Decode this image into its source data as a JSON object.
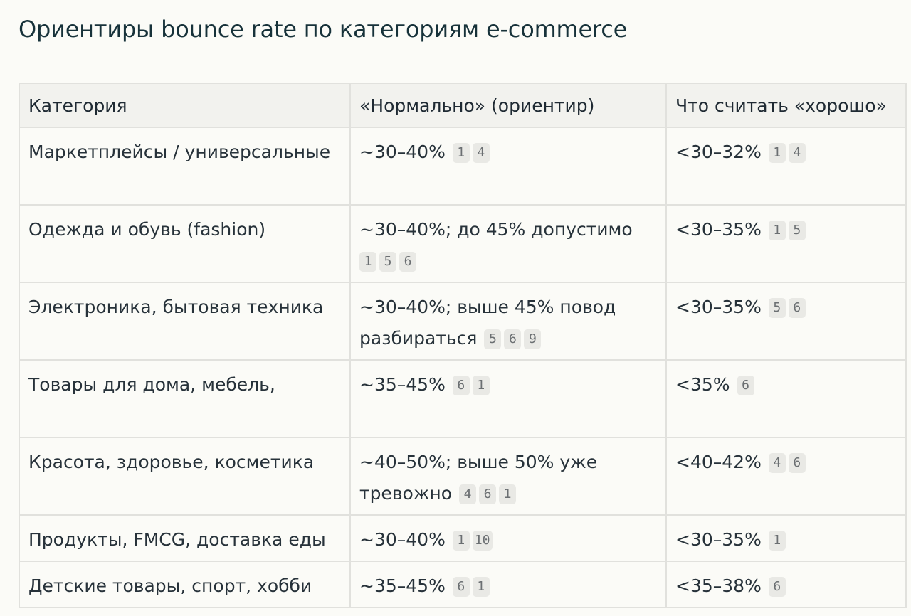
{
  "title": "Ориентиры bounce rate по категориям e-commerce",
  "headers": [
    "Категория",
    "«Нормально» (ориентир)",
    "Что считать «хорошо»"
  ],
  "rows": [
    {
      "category": "Маркетплейсы / универсальные",
      "normal": "~30–40%",
      "normal_refs": [
        "1",
        "4"
      ],
      "good": "<30–32%",
      "good_refs": [
        "1",
        "4"
      ]
    },
    {
      "category": "Одежда и обувь (fashion)",
      "normal": "~30–40%; до 45% допустимо",
      "normal_refs": [
        "1",
        "5",
        "6"
      ],
      "good": "<30–35%",
      "good_refs": [
        "1",
        "5"
      ]
    },
    {
      "category": "Электроника, бытовая техника",
      "normal": "~30–40%; выше 45% повод разбираться",
      "normal_refs": [
        "5",
        "6",
        "9"
      ],
      "good": "<30–35%",
      "good_refs": [
        "5",
        "6"
      ]
    },
    {
      "category": "Товары для дома, мебель,",
      "normal": "~35–45%",
      "normal_refs": [
        "6",
        "1"
      ],
      "good": "<35%",
      "good_refs": [
        "6"
      ]
    },
    {
      "category": "Красота, здоровье, косметика",
      "normal": "~40–50%; выше 50% уже тревожно",
      "normal_refs": [
        "4",
        "6",
        "1"
      ],
      "good": "<40–42%",
      "good_refs": [
        "4",
        "6"
      ]
    },
    {
      "category": "Продукты, FMCG, доставка еды",
      "normal": "~30–40%",
      "normal_refs": [
        "1",
        "10"
      ],
      "good": "<30–35%",
      "good_refs": [
        "1"
      ]
    },
    {
      "category": "Детские товары, спорт, хобби",
      "normal": "~35–45%",
      "normal_refs": [
        "6",
        "1"
      ],
      "good": "<35–38%",
      "good_refs": [
        "6"
      ]
    }
  ]
}
